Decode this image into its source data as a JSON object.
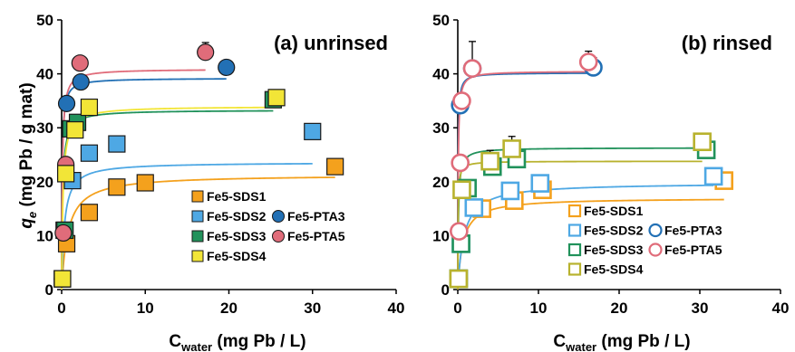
{
  "y_axis_label": {
    "q": "q",
    "sub": "e",
    "rest": " (mg Pb / g mat)"
  },
  "x_axis_label": {
    "main": "C",
    "sub": "water",
    "rest": " (mg Pb / L)"
  },
  "chart_data": [
    {
      "type": "scatter",
      "title": "(a) unrinsed",
      "xlim": [
        0,
        40
      ],
      "ylim": [
        0,
        50
      ],
      "xticks": [
        "0",
        "10",
        "20",
        "30",
        "40"
      ],
      "yticks": [
        "0",
        "10",
        "20",
        "30",
        "40",
        "50"
      ],
      "legend": {
        "placement": "bottom-right",
        "rows": [
          [
            "Fe5-SDS1"
          ],
          [
            "Fe5-SDS2",
            "Fe5-PTA3"
          ],
          [
            "Fe5-SDS3",
            "Fe5-PTA5"
          ],
          [
            "Fe5-SDS4"
          ]
        ]
      },
      "series": [
        {
          "name": "Fe5-SDS1",
          "color": "#F4A11D",
          "marker": "square-filled",
          "x": [
            0.1,
            0.6,
            3.3,
            6.6,
            10.0,
            32.7
          ],
          "y": [
            2,
            8.5,
            14.3,
            19,
            19.8,
            22.8
          ],
          "fit": {
            "qmax": 21.3,
            "K": 1.3
          }
        },
        {
          "name": "Fe5-SDS2",
          "color": "#4EA8E4",
          "marker": "square-filled",
          "x": [
            0.1,
            0.3,
            1.3,
            3.3,
            6.6,
            30.0
          ],
          "y": [
            2,
            11,
            20.2,
            25.3,
            27,
            29.3
          ],
          "fit": {
            "qmax": 23.6,
            "K": 3.0
          }
        },
        {
          "name": "Fe5-PTA3",
          "color": "#2270B5",
          "marker": "circle-filled",
          "x": [
            0.1,
            0.6,
            2.3,
            19.7
          ],
          "y": [
            2,
            34.5,
            38.5,
            41.2
          ],
          "fit": {
            "qmax": 39.2,
            "K": 15
          }
        },
        {
          "name": "Fe5-SDS3",
          "color": "#21925B",
          "marker": "square-filled",
          "x": [
            0.1,
            0.4,
            1.1,
            1.9,
            25.3
          ],
          "y": [
            2,
            11,
            29.8,
            31,
            35.2
          ],
          "fit": {
            "qmax": 33.3,
            "K": 8
          }
        },
        {
          "name": "Fe5-PTA5",
          "color": "#E06C7A",
          "marker": "circle-filled",
          "x": [
            0.1,
            0.2,
            0.5,
            2.2,
            17.2
          ],
          "y": [
            2,
            10.5,
            23.2,
            42,
            44
          ],
          "fit": {
            "qmax": 40.9,
            "K": 12
          }
        },
        {
          "name": "Fe5-SDS4",
          "color": "#F2E537",
          "marker": "square-filled",
          "x": [
            0.1,
            0.5,
            1.6,
            3.3,
            25.7
          ],
          "y": [
            2,
            21.5,
            29.6,
            33.8,
            35.6
          ],
          "fit": {
            "qmax": 34.0,
            "K": 6
          }
        }
      ],
      "error_bars": [
        {
          "series": "Fe5-PTA5",
          "x": 17.2,
          "y": 44,
          "err": 1.8
        }
      ]
    },
    {
      "type": "scatter",
      "title": "(b) rinsed",
      "xlim": [
        0,
        40
      ],
      "ylim": [
        0,
        50
      ],
      "xticks": [
        "0",
        "10",
        "20",
        "30",
        "40"
      ],
      "yticks": [
        "0",
        "10",
        "20",
        "30",
        "40",
        "50"
      ],
      "legend": {
        "placement": "bottom-right",
        "rows": [
          [
            "Fe5-SDS1"
          ],
          [
            "Fe5-SDS2",
            "Fe5-PTA3"
          ],
          [
            "Fe5-SDS3",
            "Fe5-PTA5"
          ],
          [
            "Fe5-SDS4"
          ]
        ]
      },
      "series": [
        {
          "name": "Fe5-SDS1",
          "color": "#F4A11D",
          "marker": "square-open",
          "x": [
            0.1,
            3.0,
            7.0,
            10.5,
            33.0
          ],
          "y": [
            2,
            15,
            16.5,
            18.5,
            20.2
          ],
          "fit": {
            "qmax": 17.0,
            "K": 1.6
          }
        },
        {
          "name": "Fe5-SDS2",
          "color": "#4EA8E4",
          "marker": "square-open",
          "x": [
            0.1,
            0.4,
            2.0,
            6.5,
            10.2,
            31.7
          ],
          "y": [
            2,
            8.5,
            15.2,
            18.3,
            19.7,
            21.0
          ],
          "fit": {
            "qmax": 19.8,
            "K": 1.3
          }
        },
        {
          "name": "Fe5-PTA3",
          "color": "#2270B5",
          "marker": "circle-open",
          "x": [
            0.1,
            0.3,
            1.8,
            16.8
          ],
          "y": [
            2,
            34.2,
            41,
            41.2
          ],
          "fit": {
            "qmax": 40.2,
            "K": 28
          }
        },
        {
          "name": "Fe5-SDS3",
          "color": "#21925B",
          "marker": "square-open",
          "x": [
            0.1,
            0.4,
            1.2,
            4.3,
            7.3,
            30.8
          ],
          "y": [
            2,
            8.5,
            18.8,
            22.8,
            24.2,
            25.9
          ],
          "fit": {
            "qmax": 26.3,
            "K": 12
          }
        },
        {
          "name": "Fe5-PTA5",
          "color": "#E06C7A",
          "marker": "circle-open",
          "x": [
            0.1,
            0.15,
            0.3,
            0.5,
            1.8,
            16.2
          ],
          "y": [
            2,
            10.8,
            23.5,
            35,
            41,
            42.2
          ],
          "fit": {
            "qmax": 40.5,
            "K": 20
          }
        },
        {
          "name": "Fe5-SDS4",
          "color": "#B8B22E",
          "marker": "square-open",
          "x": [
            0.1,
            0.5,
            4.0,
            6.7,
            30.3
          ],
          "y": [
            2,
            18.5,
            23.8,
            26.1,
            27.4
          ],
          "fit": {
            "qmax": 23.8,
            "K": 25
          }
        }
      ],
      "error_bars": [
        {
          "series": "Fe5-PTA3",
          "x": 1.8,
          "y": 41,
          "err": 5.0
        },
        {
          "series": "Fe5-PTA5",
          "x": 16.2,
          "y": 42.2,
          "err": 2.0
        },
        {
          "series": "Fe5-PTA3",
          "x": 16.8,
          "y": 41.2,
          "err": 1.8
        },
        {
          "series": "Fe5-SDS4",
          "x": 6.7,
          "y": 26.1,
          "err": 2.3
        },
        {
          "series": "Fe5-SDS4",
          "x": 4.0,
          "y": 23.8,
          "err": 2.0
        },
        {
          "series": "Fe5-SDS3",
          "x": 7.3,
          "y": 24.2,
          "err": 2.0
        },
        {
          "series": "Fe5-SDS2",
          "x": 6.5,
          "y": 18.3,
          "err": 1.4
        },
        {
          "series": "Fe5-SDS1",
          "x": 33.0,
          "y": 20.2,
          "err": 1.5
        }
      ]
    }
  ]
}
